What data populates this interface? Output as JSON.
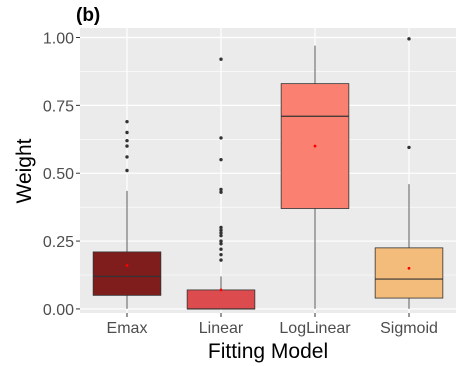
{
  "chart_data": {
    "type": "boxplot",
    "panel_label": "(b)",
    "title": "",
    "xlabel": "Fitting Model",
    "ylabel": "Weight",
    "ylim": [
      -0.015,
      1.035
    ],
    "yticks": [
      0.0,
      0.25,
      0.5,
      0.75,
      1.0
    ],
    "ytick_labels": [
      "0.00",
      "0.25",
      "0.50",
      "0.75",
      "1.00"
    ],
    "grid": true,
    "legend": "none",
    "panel_background": "#ebebeb",
    "grid_color": "#ffffff",
    "mean_marker_color": "#ff0000",
    "categories": [
      "Emax",
      "Linear",
      "LogLinear",
      "Sigmoid"
    ],
    "boxes": [
      {
        "name": "Emax",
        "color": "#7f1d1d",
        "whisker_low": 0.0,
        "q1": 0.05,
        "median": 0.12,
        "q3": 0.21,
        "whisker_high": 0.435,
        "mean": 0.16,
        "outliers": [
          0.51,
          0.56,
          0.6,
          0.62,
          0.65,
          0.69
        ]
      },
      {
        "name": "Linear",
        "color": "#dc4c4f",
        "whisker_low": 0.0,
        "q1": 0.0,
        "median": 0.0,
        "q3": 0.07,
        "whisker_high": 0.12,
        "mean": 0.07,
        "outliers": [
          0.18,
          0.2,
          0.22,
          0.24,
          0.25,
          0.27,
          0.28,
          0.29,
          0.3,
          0.43,
          0.44,
          0.55,
          0.63,
          0.92
        ]
      },
      {
        "name": "LogLinear",
        "color": "#fa8172",
        "whisker_low": 0.0,
        "q1": 0.37,
        "median": 0.71,
        "q3": 0.83,
        "whisker_high": 0.97,
        "mean": 0.6,
        "outliers": []
      },
      {
        "name": "Sigmoid",
        "color": "#f4bc7b",
        "whisker_low": 0.0,
        "q1": 0.04,
        "median": 0.11,
        "q3": 0.225,
        "whisker_high": 0.46,
        "mean": 0.15,
        "outliers": [
          0.595,
          0.995
        ]
      }
    ]
  }
}
